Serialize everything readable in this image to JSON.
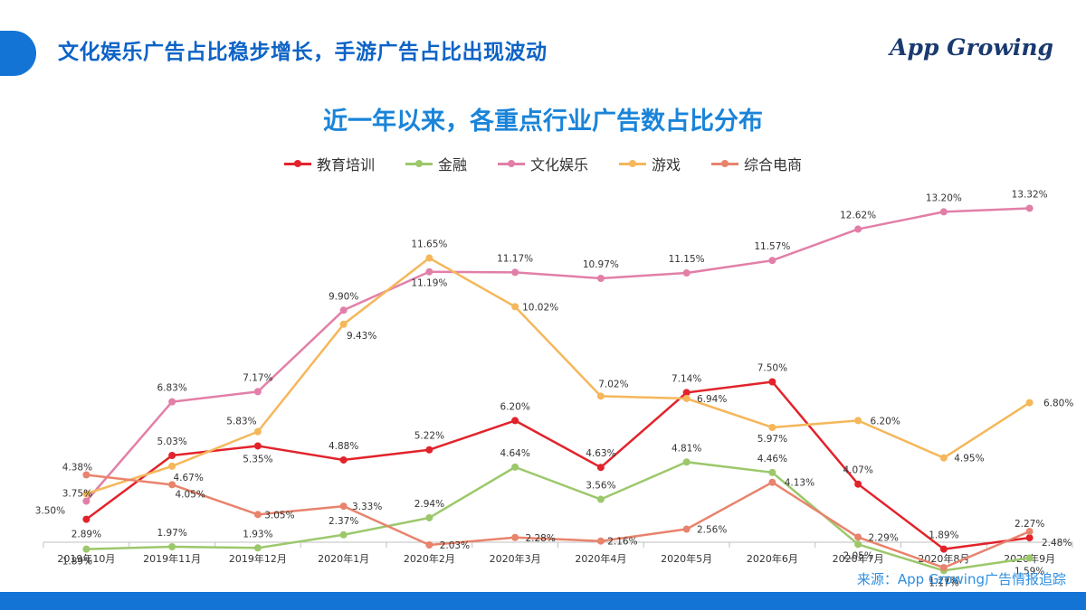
{
  "header": {
    "title": "文化娱乐广告占比稳步增长，手游广告占比出现波动",
    "brand": "App Growing"
  },
  "source": "来源：App Growing广告情报追踪",
  "colors": {
    "accent": "#1474d6",
    "title": "#0d63c6"
  },
  "chart_data": {
    "type": "line",
    "title": "近一年以来，各重点行业广告数占比分布",
    "legend_position": "top",
    "grid": false,
    "categories": [
      "2019年10月",
      "2019年11月",
      "2019年12月",
      "2020年1月",
      "2020年2月",
      "2020年3月",
      "2020年4月",
      "2020年5月",
      "2020年6月",
      "2020年7月",
      "2020年8月",
      "2020年9月"
    ],
    "ylim": [
      0,
      16
    ],
    "series": [
      {
        "name": "教育培训",
        "color": "#e2232b",
        "values": [
          2.89,
          5.03,
          5.35,
          4.88,
          5.22,
          6.2,
          4.63,
          7.14,
          7.5,
          4.07,
          1.89,
          2.27
        ],
        "labels": [
          "2.89%",
          "5.03%",
          "5.35%",
          "4.88%",
          "5.22%",
          "6.20%",
          "4.63%",
          "7.14%",
          "7.50%",
          "4.07%",
          "1.89%",
          "2.27%"
        ]
      },
      {
        "name": "金融",
        "color": "#9cc86b",
        "values": [
          1.89,
          1.97,
          1.93,
          2.37,
          2.94,
          4.64,
          3.56,
          4.81,
          4.46,
          2.05,
          1.17,
          1.59
        ],
        "labels": [
          "1.89%",
          "1.97%",
          "1.93%",
          "2.37%",
          "2.94%",
          "4.64%",
          "3.56%",
          "4.81%",
          "4.46%",
          "2.05%",
          "1.17%",
          "1.59%"
        ]
      },
      {
        "name": "文化娱乐",
        "color": "#e27fa8",
        "values": [
          3.5,
          6.83,
          7.17,
          9.9,
          11.19,
          11.17,
          10.97,
          11.15,
          11.57,
          12.62,
          13.2,
          13.32
        ],
        "labels": [
          "3.50%",
          "6.83%",
          "7.17%",
          "9.90%",
          "11.19%",
          "11.17%",
          "10.97%",
          "11.15%",
          "11.57%",
          "12.62%",
          "13.20%",
          "13.32%"
        ]
      },
      {
        "name": "游戏",
        "color": "#f5b75a",
        "values": [
          3.75,
          4.67,
          5.83,
          9.43,
          11.65,
          10.02,
          7.02,
          6.94,
          5.97,
          6.2,
          4.95,
          6.8
        ],
        "labels": [
          "3.75%",
          "4.67%",
          "5.83%",
          "9.43%",
          "11.65%",
          "10.02%",
          "7.02%",
          "6.94%",
          "5.97%",
          "6.20%",
          "4.95%",
          "6.80%"
        ]
      },
      {
        "name": "综合电商",
        "color": "#e8836c",
        "values": [
          4.38,
          4.05,
          3.05,
          3.33,
          2.03,
          2.28,
          2.16,
          2.56,
          4.13,
          2.29,
          1.27,
          2.48
        ],
        "labels": [
          "4.38%",
          "4.05%",
          "3.05%",
          "3.33%",
          "2.03%",
          "2.28%",
          "2.16%",
          "2.56%",
          "4.13%",
          "2.29%",
          "1.27%",
          "2.48%"
        ]
      }
    ]
  }
}
